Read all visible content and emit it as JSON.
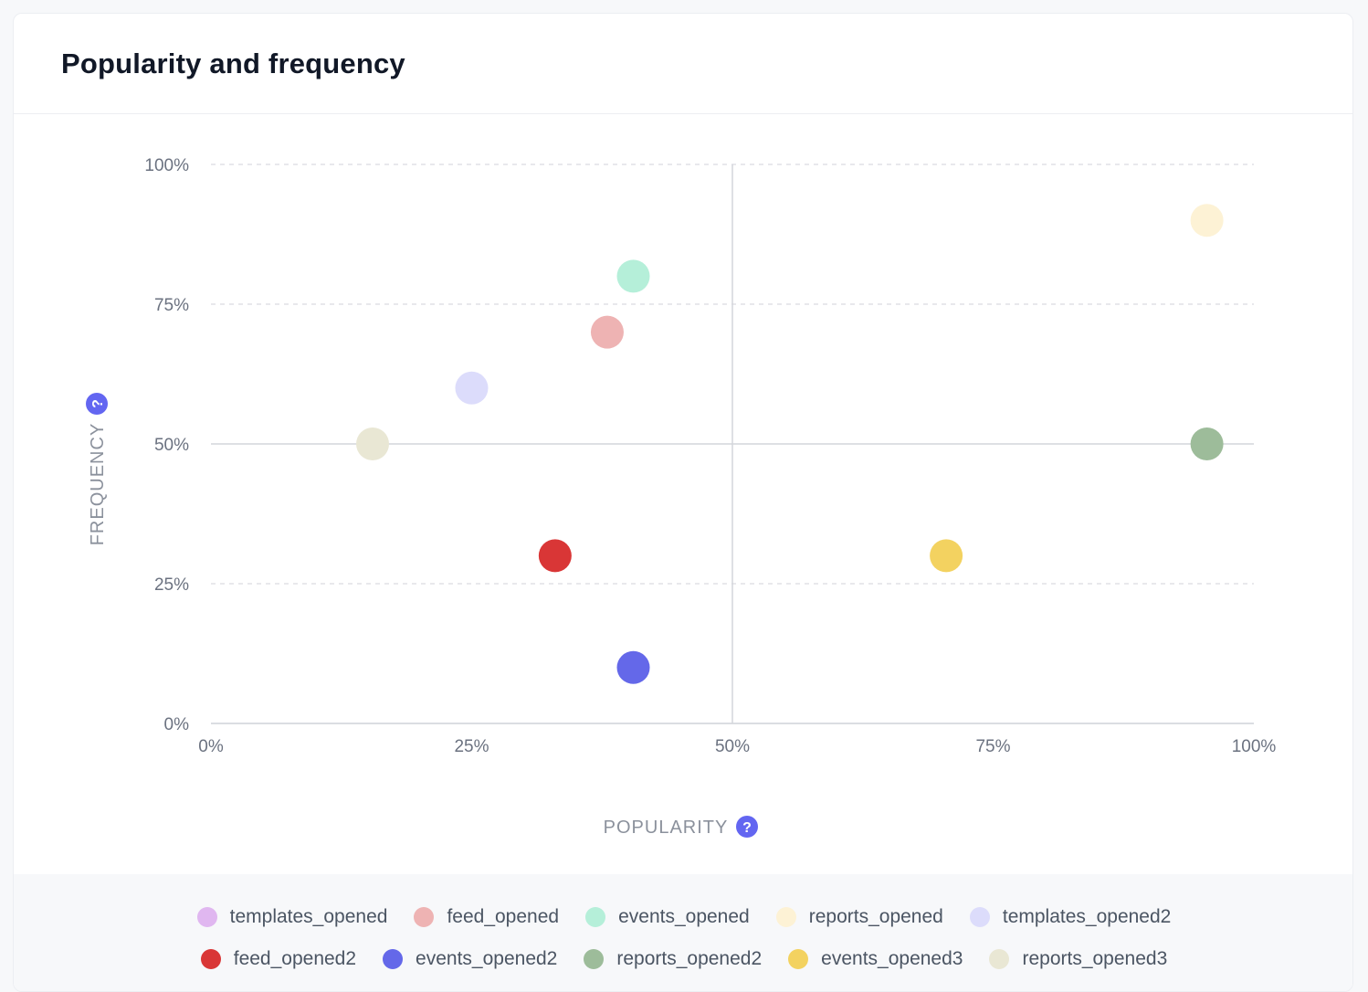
{
  "card": {
    "title": "Popularity and frequency"
  },
  "chart_data": {
    "type": "scatter",
    "xlabel": "POPULARITY",
    "ylabel": "FREQUENCY",
    "xlim": [
      0,
      100
    ],
    "ylim": [
      0,
      100
    ],
    "x_ticks": [
      "0%",
      "25%",
      "50%",
      "75%",
      "100%"
    ],
    "y_ticks": [
      "0%",
      "25%",
      "50%",
      "75%",
      "100%"
    ],
    "grid": true,
    "quadrant_lines": {
      "x": 50,
      "y": 50
    },
    "legend_position": "bottom",
    "help_icon_text": "?",
    "series": [
      {
        "name": "templates_opened",
        "color": "#e0b7f0",
        "points": []
      },
      {
        "name": "feed_opened",
        "color": "#eeb3b3",
        "points": [
          {
            "x": 38,
            "y": 70
          }
        ]
      },
      {
        "name": "events_opened",
        "color": "#b5efd9",
        "points": [
          {
            "x": 40.5,
            "y": 80
          }
        ]
      },
      {
        "name": "reports_opened",
        "color": "#fdf2d5",
        "points": [
          {
            "x": 95.5,
            "y": 90
          }
        ]
      },
      {
        "name": "templates_opened2",
        "color": "#dcdcfb",
        "points": [
          {
            "x": 25,
            "y": 60
          }
        ]
      },
      {
        "name": "feed_opened2",
        "color": "#d93636",
        "points": [
          {
            "x": 33,
            "y": 30
          }
        ]
      },
      {
        "name": "events_opened2",
        "color": "#6468e9",
        "points": [
          {
            "x": 40.5,
            "y": 10
          }
        ]
      },
      {
        "name": "reports_opened2",
        "color": "#9dbc9a",
        "points": [
          {
            "x": 95.5,
            "y": 50
          }
        ]
      },
      {
        "name": "events_opened3",
        "color": "#f3d260",
        "points": [
          {
            "x": 70.5,
            "y": 30
          }
        ]
      },
      {
        "name": "reports_opened3",
        "color": "#e9e7d4",
        "points": [
          {
            "x": 15.5,
            "y": 50
          }
        ]
      }
    ]
  },
  "colors": {
    "accent": "#6366f1",
    "grid": "#d9dbe0",
    "quadrant": "#d4d6db"
  }
}
